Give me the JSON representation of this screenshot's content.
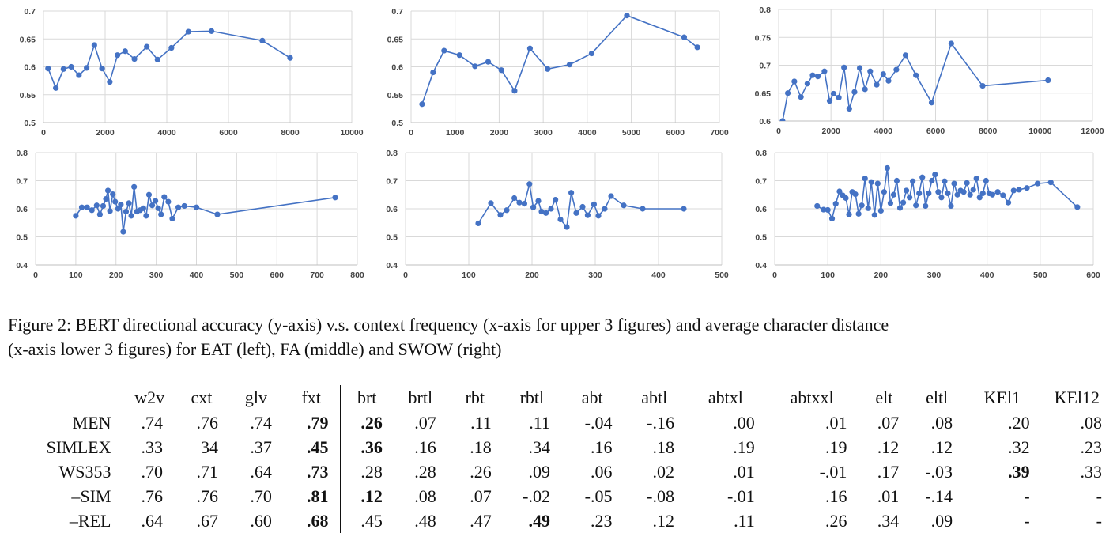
{
  "chart_data": [
    {
      "type": "line",
      "xlim": [
        0,
        10000
      ],
      "ylim": [
        0.5,
        0.7
      ],
      "xticks": [
        "0",
        "2000",
        "4000",
        "6000",
        "8000",
        "10000"
      ],
      "yticks": [
        "0.5",
        "0.55",
        "0.6",
        "0.65",
        "0.7"
      ],
      "grid": true,
      "series": [
        {
          "x": [
            150,
            400,
            650,
            900,
            1150,
            1400,
            1650,
            1900,
            2150,
            2400,
            2650,
            2950,
            3350,
            3700,
            4150,
            4700,
            5450,
            7100,
            8000
          ],
          "y": [
            0.597,
            0.562,
            0.596,
            0.6,
            0.585,
            0.598,
            0.639,
            0.597,
            0.573,
            0.621,
            0.628,
            0.614,
            0.636,
            0.613,
            0.634,
            0.663,
            0.664,
            0.647,
            0.616
          ]
        }
      ]
    },
    {
      "type": "line",
      "xlim": [
        0,
        7000
      ],
      "ylim": [
        0.5,
        0.7
      ],
      "xticks": [
        "0",
        "1000",
        "2000",
        "3000",
        "4000",
        "5000",
        "6000",
        "7000"
      ],
      "yticks": [
        "0.5",
        "0.55",
        "0.6",
        "0.65",
        "0.7"
      ],
      "grid": true,
      "series": [
        {
          "x": [
            250,
            500,
            750,
            1100,
            1450,
            1750,
            2050,
            2350,
            2700,
            3100,
            3600,
            4100,
            4900,
            6200,
            6500
          ],
          "y": [
            0.533,
            0.59,
            0.629,
            0.621,
            0.601,
            0.609,
            0.594,
            0.557,
            0.633,
            0.596,
            0.604,
            0.624,
            0.692,
            0.653,
            0.635
          ]
        }
      ]
    },
    {
      "type": "line",
      "xlim": [
        0,
        12000
      ],
      "ylim": [
        0.6,
        0.8
      ],
      "xticks": [
        "0",
        "2000",
        "4000",
        "6000",
        "8000",
        "10000",
        "12000"
      ],
      "yticks": [
        "0.6",
        "0.65",
        "0.7",
        "0.75",
        "0.8"
      ],
      "grid": true,
      "series": [
        {
          "x": [
            150,
            350,
            600,
            850,
            1100,
            1300,
            1500,
            1750,
            1950,
            2100,
            2300,
            2500,
            2700,
            2900,
            3100,
            3300,
            3500,
            3750,
            4000,
            4200,
            4500,
            4850,
            5250,
            5850,
            6600,
            7800,
            10300
          ],
          "y": [
            0.6,
            0.65,
            0.671,
            0.643,
            0.667,
            0.682,
            0.68,
            0.689,
            0.636,
            0.649,
            0.642,
            0.696,
            0.622,
            0.652,
            0.695,
            0.657,
            0.689,
            0.665,
            0.684,
            0.672,
            0.692,
            0.718,
            0.682,
            0.633,
            0.739,
            0.663,
            0.673
          ]
        }
      ]
    },
    {
      "type": "line",
      "xlim": [
        0,
        800
      ],
      "ylim": [
        0.4,
        0.8
      ],
      "xticks": [
        "0",
        "100",
        "200",
        "300",
        "400",
        "500",
        "600",
        "700",
        "800"
      ],
      "yticks": [
        "0.4",
        "0.5",
        "0.6",
        "0.7",
        "0.8"
      ],
      "grid": true,
      "series": [
        {
          "x": [
            100,
            115,
            128,
            140,
            152,
            160,
            168,
            175,
            180,
            185,
            192,
            198,
            205,
            212,
            218,
            225,
            232,
            238,
            245,
            252,
            260,
            268,
            275,
            282,
            290,
            298,
            305,
            312,
            320,
            330,
            340,
            355,
            370,
            400,
            452,
            745
          ],
          "y": [
            0.575,
            0.605,
            0.605,
            0.595,
            0.612,
            0.58,
            0.61,
            0.635,
            0.665,
            0.592,
            0.652,
            0.625,
            0.6,
            0.615,
            0.518,
            0.59,
            0.62,
            0.575,
            0.678,
            0.59,
            0.595,
            0.602,
            0.575,
            0.65,
            0.612,
            0.628,
            0.602,
            0.58,
            0.642,
            0.625,
            0.565,
            0.605,
            0.61,
            0.605,
            0.58,
            0.64
          ]
        }
      ]
    },
    {
      "type": "line",
      "xlim": [
        0,
        500
      ],
      "ylim": [
        0.4,
        0.8
      ],
      "xticks": [
        "0",
        "100",
        "200",
        "300",
        "400",
        "500"
      ],
      "yticks": [
        "0.4",
        "0.5",
        "0.6",
        "0.7",
        "0.8"
      ],
      "grid": true,
      "series": [
        {
          "x": [
            115,
            135,
            150,
            160,
            172,
            180,
            188,
            196,
            202,
            210,
            215,
            222,
            230,
            237,
            245,
            255,
            262,
            270,
            280,
            288,
            298,
            305,
            315,
            325,
            345,
            375,
            440
          ],
          "y": [
            0.548,
            0.62,
            0.578,
            0.595,
            0.638,
            0.622,
            0.618,
            0.688,
            0.605,
            0.628,
            0.59,
            0.585,
            0.6,
            0.632,
            0.562,
            0.535,
            0.657,
            0.585,
            0.607,
            0.577,
            0.616,
            0.575,
            0.6,
            0.645,
            0.612,
            0.6,
            0.6
          ]
        }
      ]
    },
    {
      "type": "line",
      "xlim": [
        0,
        600
      ],
      "ylim": [
        0.4,
        0.8
      ],
      "xticks": [
        "0",
        "100",
        "200",
        "300",
        "400",
        "500",
        "600"
      ],
      "yticks": [
        "0.4",
        "0.5",
        "0.6",
        "0.7",
        "0.8"
      ],
      "grid": true,
      "series": [
        {
          "x": [
            80,
            92,
            100,
            108,
            115,
            122,
            128,
            134,
            140,
            146,
            152,
            158,
            164,
            170,
            176,
            182,
            188,
            194,
            200,
            206,
            212,
            218,
            224,
            230,
            236,
            242,
            248,
            254,
            260,
            266,
            272,
            278,
            284,
            290,
            296,
            302,
            308,
            314,
            320,
            326,
            332,
            338,
            344,
            350,
            356,
            362,
            368,
            374,
            380,
            386,
            392,
            398,
            404,
            410,
            420,
            430,
            440,
            450,
            460,
            475,
            495,
            520,
            570
          ],
          "y": [
            0.61,
            0.597,
            0.596,
            0.565,
            0.618,
            0.662,
            0.648,
            0.638,
            0.58,
            0.66,
            0.652,
            0.582,
            0.612,
            0.708,
            0.602,
            0.695,
            0.578,
            0.69,
            0.593,
            0.66,
            0.745,
            0.62,
            0.65,
            0.7,
            0.603,
            0.622,
            0.665,
            0.64,
            0.698,
            0.612,
            0.655,
            0.712,
            0.61,
            0.655,
            0.7,
            0.722,
            0.66,
            0.64,
            0.698,
            0.655,
            0.61,
            0.69,
            0.65,
            0.665,
            0.66,
            0.692,
            0.65,
            0.668,
            0.708,
            0.64,
            0.655,
            0.7,
            0.655,
            0.65,
            0.66,
            0.648,
            0.622,
            0.665,
            0.668,
            0.674,
            0.69,
            0.694,
            0.606
          ]
        }
      ]
    }
  ],
  "caption": {
    "line1": "Figure 2: BERT directional accuracy (y-axis) v.s. context frequency (x-axis for upper 3 figures) and average character distance",
    "line2": "(x-axis lower 3 figures) for EAT (left), FA (middle) and SWOW (right)"
  },
  "table": {
    "header": [
      "",
      "w2v",
      "cxt",
      "glv",
      "fxt",
      "brt",
      "brtl",
      "rbt",
      "rbtl",
      "abt",
      "abtl",
      "abtxl",
      "abtxxl",
      "elt",
      "eltl",
      "KEl1",
      "KEl12"
    ],
    "rows": [
      {
        "label": "MEN",
        "cells": [
          ".74",
          ".76",
          ".74",
          ".79",
          ".26",
          ".07",
          ".11",
          ".11",
          "-.04",
          "-.16",
          ".00",
          ".01",
          ".07",
          ".08",
          ".20",
          ".08"
        ]
      },
      {
        "label": "SIMLEX",
        "cells": [
          ".33",
          "34",
          ".37",
          ".45",
          ".36",
          ".16",
          ".18",
          ".34",
          ".16",
          ".18",
          ".19",
          ".19",
          ".12",
          ".12",
          ".32",
          ".23"
        ]
      },
      {
        "label": "WS353",
        "cells": [
          ".70",
          ".71",
          ".64",
          ".73",
          ".28",
          ".28",
          ".26",
          ".09",
          ".06",
          ".02",
          ".01",
          "-.01",
          ".17",
          "-.03",
          ".39",
          ".33"
        ]
      },
      {
        "label": "–SIM",
        "cells": [
          ".76",
          ".76",
          ".70",
          ".81",
          ".12",
          ".08",
          ".07",
          "-.02",
          "-.05",
          "-.08",
          "-.01",
          ".16",
          ".01",
          "-.14",
          "-",
          "-"
        ]
      },
      {
        "label": "–REL",
        "cells": [
          ".64",
          ".67",
          ".60",
          ".68",
          ".45",
          ".48",
          ".47",
          ".49",
          ".23",
          ".12",
          ".11",
          ".26",
          ".34",
          ".09",
          "-",
          "-"
        ]
      }
    ],
    "bold": [
      [
        0,
        3
      ],
      [
        0,
        4
      ],
      [
        1,
        3
      ],
      [
        1,
        4
      ],
      [
        2,
        3
      ],
      [
        2,
        14
      ],
      [
        3,
        3
      ],
      [
        3,
        4
      ],
      [
        4,
        3
      ],
      [
        4,
        7
      ]
    ]
  },
  "colors": {
    "series": "#4472C4",
    "grid": "#d9d9d9",
    "axis": "#bfbfbf"
  }
}
